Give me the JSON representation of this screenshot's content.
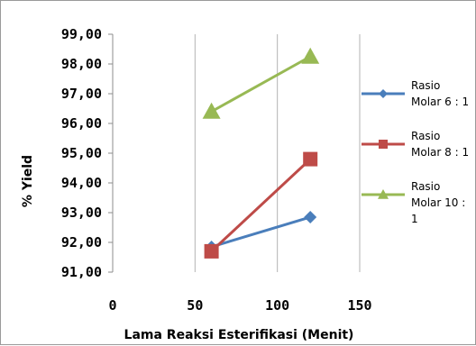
{
  "chart_data": {
    "type": "line",
    "title": "",
    "xlabel": "Lama Reaksi Esterifikasi (Menit)",
    "ylabel": "% Yield",
    "xlim": [
      0,
      150
    ],
    "ylim": [
      91,
      99
    ],
    "x_ticks": [
      "0",
      "50",
      "100",
      "150"
    ],
    "y_ticks": [
      "91,00",
      "92,00",
      "93,00",
      "94,00",
      "95,00",
      "96,00",
      "97,00",
      "98,00",
      "99,00"
    ],
    "grid": "vertical",
    "legend_position": "right",
    "series": [
      {
        "name_lines": [
          "Rasio",
          "Molar 6 : 1"
        ],
        "color": "#4a7ebb",
        "marker": "diamond",
        "points": [
          {
            "x": 60,
            "y": 91.85
          },
          {
            "x": 120,
            "y": 92.85
          }
        ]
      },
      {
        "name_lines": [
          "Rasio",
          "Molar 8 : 1"
        ],
        "color": "#be4b48",
        "marker": "square",
        "points": [
          {
            "x": 60,
            "y": 91.7
          },
          {
            "x": 120,
            "y": 94.8
          }
        ]
      },
      {
        "name_lines": [
          "Rasio",
          "Molar 10 :",
          "1"
        ],
        "color": "#98b954",
        "marker": "triangle",
        "points": [
          {
            "x": 60,
            "y": 96.4
          },
          {
            "x": 120,
            "y": 98.25
          }
        ]
      }
    ]
  }
}
